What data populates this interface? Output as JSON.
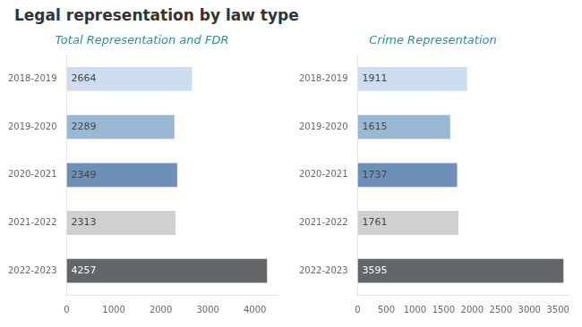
{
  "title": "Legal representation by law type",
  "chart_data": [
    {
      "type": "bar",
      "orientation": "horizontal",
      "title": "Total Representation and FDR",
      "categories": [
        "2018-2019",
        "2019-2020",
        "2020-2021",
        "2021-2022",
        "2022-2023"
      ],
      "values": [
        2664,
        2289,
        2349,
        2313,
        4257
      ],
      "colors": [
        "#ccdded",
        "#98b8d4",
        "#6e8fb8",
        "#d0d0d0",
        "#636669"
      ],
      "xlim": [
        0,
        4500
      ],
      "xticks": [
        0,
        1000,
        2000,
        3000,
        4000
      ],
      "data_labels": true,
      "grid": false
    },
    {
      "type": "bar",
      "orientation": "horizontal",
      "title": "Crime Representation",
      "categories": [
        "2018-2019",
        "2019-2020",
        "2020-2021",
        "2021-2022",
        "2022-2023"
      ],
      "values": [
        1911,
        1615,
        1737,
        1761,
        3595
      ],
      "colors": [
        "#ccdded",
        "#98b8d4",
        "#6e8fb8",
        "#d0d0d0",
        "#636669"
      ],
      "xlim": [
        0,
        3700
      ],
      "xticks": [
        0,
        500,
        1000,
        1500,
        2000,
        2500,
        3000,
        3500
      ],
      "data_labels": true,
      "grid": false
    }
  ]
}
